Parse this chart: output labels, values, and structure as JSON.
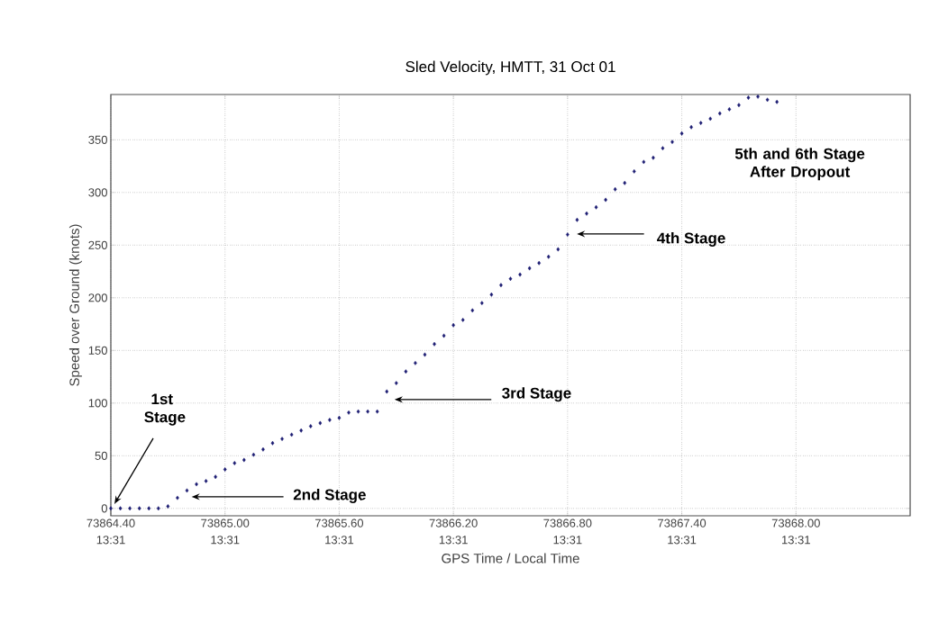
{
  "chart_data": {
    "type": "scatter",
    "title": "Sled Velocity, HMTT, 31 Oct 01",
    "xlabel": "GPS Time / Local Time",
    "ylabel": "Speed over Ground (knots)",
    "x": [
      73864.4,
      73864.45,
      73864.5,
      73864.55,
      73864.6,
      73864.65,
      73864.7,
      73864.75,
      73864.8,
      73864.85,
      73864.9,
      73864.95,
      73865.0,
      73865.05,
      73865.1,
      73865.15,
      73865.2,
      73865.25,
      73865.3,
      73865.35,
      73865.4,
      73865.45,
      73865.5,
      73865.55,
      73865.6,
      73865.65,
      73865.7,
      73865.75,
      73865.8,
      73865.85,
      73865.9,
      73865.95,
      73866.0,
      73866.05,
      73866.1,
      73866.15,
      73866.2,
      73866.25,
      73866.3,
      73866.35,
      73866.4,
      73866.45,
      73866.5,
      73866.55,
      73866.6,
      73866.65,
      73866.7,
      73866.75,
      73866.8,
      73866.85,
      73866.9,
      73866.95,
      73867.0,
      73867.05,
      73867.1,
      73867.15,
      73867.2,
      73867.25,
      73867.3,
      73867.35,
      73867.4,
      73867.45,
      73867.5,
      73867.55,
      73867.6,
      73867.65,
      73867.7,
      73867.75,
      73867.8,
      73867.85,
      73867.9
    ],
    "series": [
      {
        "color": "#1c1c72",
        "values": [
          0,
          0,
          0,
          0,
          0,
          0,
          2,
          10,
          17,
          23,
          26,
          30,
          37,
          43,
          46,
          51,
          56,
          62,
          66,
          70,
          74,
          78,
          81,
          84,
          86,
          91,
          92,
          92,
          92,
          111,
          119,
          130,
          138,
          146,
          156,
          164,
          174,
          179,
          188,
          195,
          203,
          212,
          218,
          222,
          228,
          233,
          239,
          246,
          260,
          274,
          280,
          286,
          293,
          303,
          309,
          320,
          329,
          333,
          342,
          348,
          356,
          362,
          366,
          370,
          375,
          379,
          383,
          390,
          391,
          388,
          386
        ]
      }
    ],
    "xlim": [
      73864.4,
      73868.6
    ],
    "ylim": [
      -7,
      393
    ],
    "xticks": [
      {
        "value": 73864.4,
        "label": "73864.40"
      },
      {
        "value": 73865.0,
        "label": "73865.00"
      },
      {
        "value": 73865.6,
        "label": "73865.60"
      },
      {
        "value": 73866.2,
        "label": "73866.20"
      },
      {
        "value": 73866.8,
        "label": "73866.80"
      },
      {
        "value": 73867.4,
        "label": "73867.40"
      },
      {
        "value": 73868.0,
        "label": "73868.00"
      }
    ],
    "yticks": [
      0,
      50,
      100,
      150,
      200,
      250,
      300,
      350
    ],
    "grid": true,
    "marker": "diamond",
    "annotations": [
      "1st Stage",
      "2nd Stage",
      "3rd Stage",
      "4th Stage",
      "5th and 6th Stage After Dropout",
      "13:31",
      "13:31",
      "13:31",
      "13:31",
      "13:31",
      "13:31",
      "13:31"
    ]
  }
}
